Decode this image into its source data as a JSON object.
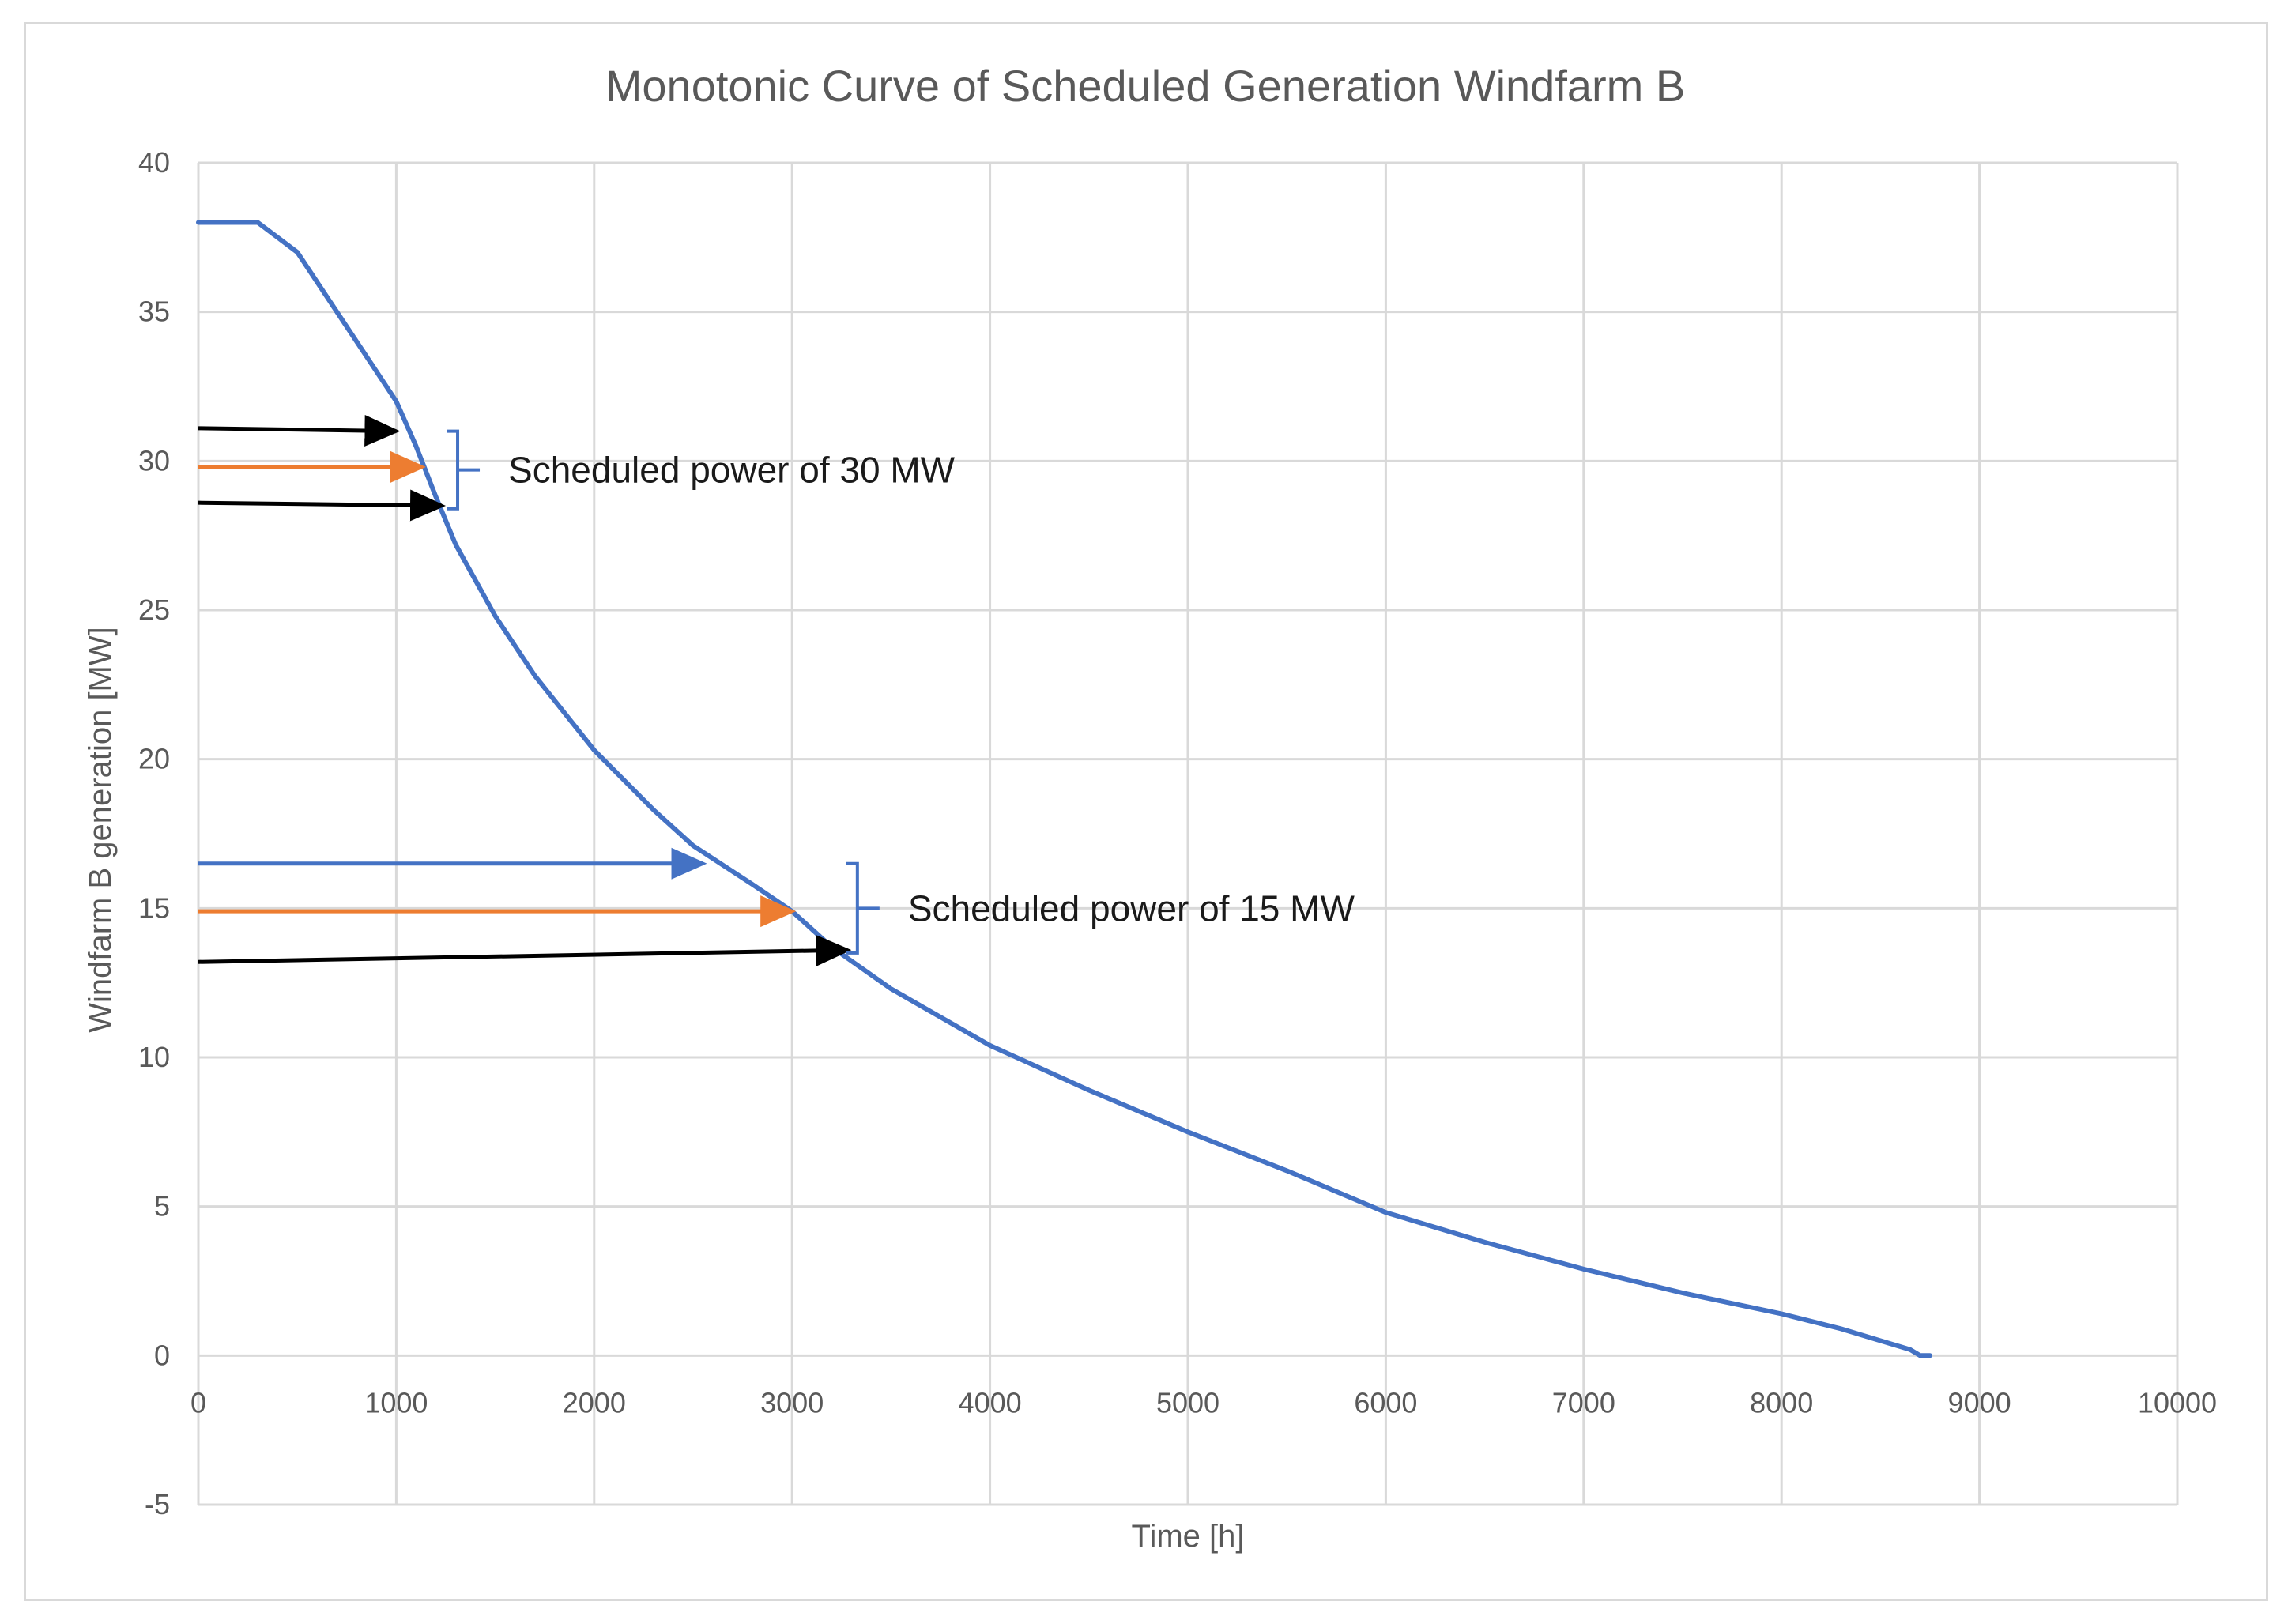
{
  "chart_data": {
    "type": "line",
    "title": "Monotonic Curve of Scheduled Generation Windfarm B",
    "xlabel": "Time [h]",
    "ylabel": "Windfarm B generation [MW]",
    "xlim": [
      0,
      10000
    ],
    "ylim": [
      -5,
      40
    ],
    "x_ticks": [
      0,
      1000,
      2000,
      3000,
      4000,
      5000,
      6000,
      7000,
      8000,
      9000,
      10000
    ],
    "y_ticks": [
      40,
      35,
      30,
      25,
      20,
      15,
      10,
      5,
      0,
      -5
    ],
    "grid": true,
    "series": [
      {
        "name": "Windfarm B generation",
        "color": "#4472c4",
        "x": [
          0,
          300,
          500,
          700,
          900,
          1000,
          1100,
          1200,
          1300,
          1500,
          1700,
          2000,
          2300,
          2500,
          2800,
          3000,
          3200,
          3500,
          4000,
          4500,
          5000,
          5500,
          6000,
          6500,
          7000,
          7500,
          8000,
          8300,
          8500,
          8650,
          8700,
          8750
        ],
        "y": [
          38,
          38,
          37,
          35,
          33,
          32,
          30.5,
          28.8,
          27.2,
          24.8,
          22.8,
          20.3,
          18.3,
          17.1,
          15.8,
          14.9,
          13.7,
          12.3,
          10.4,
          8.9,
          7.5,
          6.2,
          4.8,
          3.8,
          2.9,
          2.1,
          1.4,
          0.9,
          0.5,
          0.2,
          0.0,
          0.0
        ]
      }
    ],
    "annotations": [
      {
        "id": "arrow-30-upper",
        "color": "#000000",
        "x_start": 0,
        "y_start": 31.1,
        "x_end": 1000,
        "y_end": 31.0
      },
      {
        "id": "arrow-30-scheduled",
        "color": "#ed7d31",
        "x_start": 0,
        "y_start": 29.8,
        "x_end": 1130,
        "y_end": 29.8
      },
      {
        "id": "arrow-30-lower",
        "color": "#000000",
        "x_start": 0,
        "y_start": 28.6,
        "x_end": 1230,
        "y_end": 28.5
      },
      {
        "id": "arrow-15-upper",
        "color": "#4472c4",
        "x_start": 0,
        "y_start": 16.5,
        "x_end": 2550,
        "y_end": 16.5
      },
      {
        "id": "arrow-15-scheduled",
        "color": "#ed7d31",
        "x_start": 0,
        "y_start": 14.9,
        "x_end": 3000,
        "y_end": 14.9
      },
      {
        "id": "arrow-15-lower",
        "color": "#000000",
        "x_start": 0,
        "y_start": 13.2,
        "x_end": 3280,
        "y_end": 13.6
      }
    ],
    "labels": [
      {
        "id": "label-30",
        "text": "Scheduled power of 30 MW",
        "bracket_color": "#4472c4",
        "bracket_x": 1310,
        "bracket_y_top": 31.0,
        "bracket_y_bottom": 28.4
      },
      {
        "id": "label-15",
        "text": "Scheduled power of 15 MW",
        "bracket_color": "#4472c4",
        "bracket_x": 3330,
        "bracket_y_top": 16.5,
        "bracket_y_bottom": 13.5
      }
    ]
  }
}
